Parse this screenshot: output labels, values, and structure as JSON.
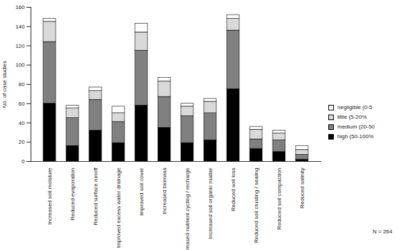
{
  "chart_data": {
    "type": "bar",
    "stacked": true,
    "y_label": "No. of case studies",
    "annotation": "N = 264",
    "legend": "right",
    "categories": [
      "Increased soil moisture",
      "Reduced evaporation",
      "Reduced surface runoff",
      "Improved excess water drainage",
      "Improved soil cover",
      "Increased biomass",
      "Increased nutrient cycling / recharge",
      "Increased soil organic matter",
      "Reduced soil loss",
      "Reduced soil crusting / sealing",
      "Reduced soil compaction",
      "Reduced salinity"
    ],
    "series": [
      {
        "name": "high (50-100%",
        "color": "#000000",
        "values": [
          60,
          16,
          32,
          19,
          58,
          35,
          19,
          22,
          75,
          13,
          10,
          2
        ]
      },
      {
        "name": "medium (20-50",
        "color": "#808080",
        "values": [
          64,
          29,
          32,
          22,
          57,
          32,
          28,
          28,
          61,
          10,
          12,
          5
        ]
      },
      {
        "name": "little (5-20%",
        "color": "#d9d9d9",
        "values": [
          21,
          10,
          9,
          9,
          19,
          16,
          10,
          12,
          12,
          10,
          7,
          5
        ]
      },
      {
        "name": "negligible (0-5",
        "color": "#ffffff",
        "values": [
          3,
          3,
          4,
          7,
          9,
          4,
          3,
          3,
          4,
          3,
          3,
          4
        ]
      }
    ],
    "ylim": [
      0,
      160
    ],
    "yticks": [
      0,
      20,
      40,
      60,
      80,
      100,
      120,
      140,
      160
    ],
    "grid": false
  }
}
